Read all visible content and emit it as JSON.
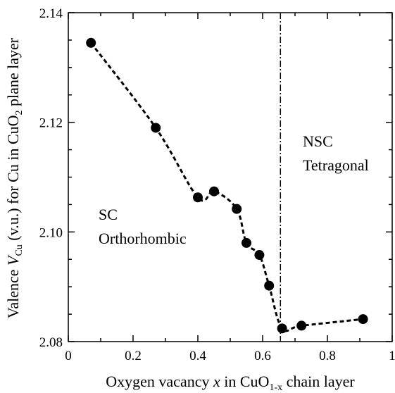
{
  "chart_data": {
    "type": "scatter",
    "title": "",
    "xlabel": {
      "prefix": "Oxygen vacancy ",
      "var": "x",
      "mid": " in CuO",
      "sub": "1-x",
      "suffix": " chain layer"
    },
    "ylabel": {
      "prefix": "Valence ",
      "var": "V",
      "sub": "Cu",
      "mid": " (v.u.) for Cu in CuO",
      "sub2": "2",
      "suffix": " plane layer"
    },
    "xlim": [
      0,
      1
    ],
    "ylim": [
      2.08,
      2.14
    ],
    "x_ticks": [
      0,
      0.2,
      0.4,
      0.6,
      0.8,
      1
    ],
    "x_tick_labels": [
      "0",
      "0.2",
      "0.4",
      "0.6",
      "0.8",
      "1"
    ],
    "y_ticks": [
      2.08,
      2.1,
      2.12,
      2.14
    ],
    "y_tick_labels": [
      "2.08",
      "2.10",
      "2.12",
      "2.14"
    ],
    "grid": false,
    "series": [
      {
        "marker": "filled-circle",
        "line_style": "dashed",
        "x": [
          0.07,
          0.27,
          0.4,
          0.45,
          0.52,
          0.55,
          0.59,
          0.62,
          0.66,
          0.72,
          0.91
        ],
        "y": [
          2.1345,
          2.119,
          2.1063,
          2.1074,
          2.1042,
          2.098,
          2.0958,
          2.0902,
          2.0824,
          2.0829,
          2.0841
        ]
      }
    ],
    "boundary": {
      "x": 0.655,
      "line_style": "dash-dot"
    },
    "annotations": [
      {
        "lines": [
          "SC",
          "Orthorhombic"
        ],
        "region": "left-middle"
      },
      {
        "lines": [
          "NSC",
          "Tetragonal"
        ],
        "region": "right-upper"
      }
    ],
    "colors": {
      "ink": "#000000",
      "background": "#ffffff"
    }
  }
}
